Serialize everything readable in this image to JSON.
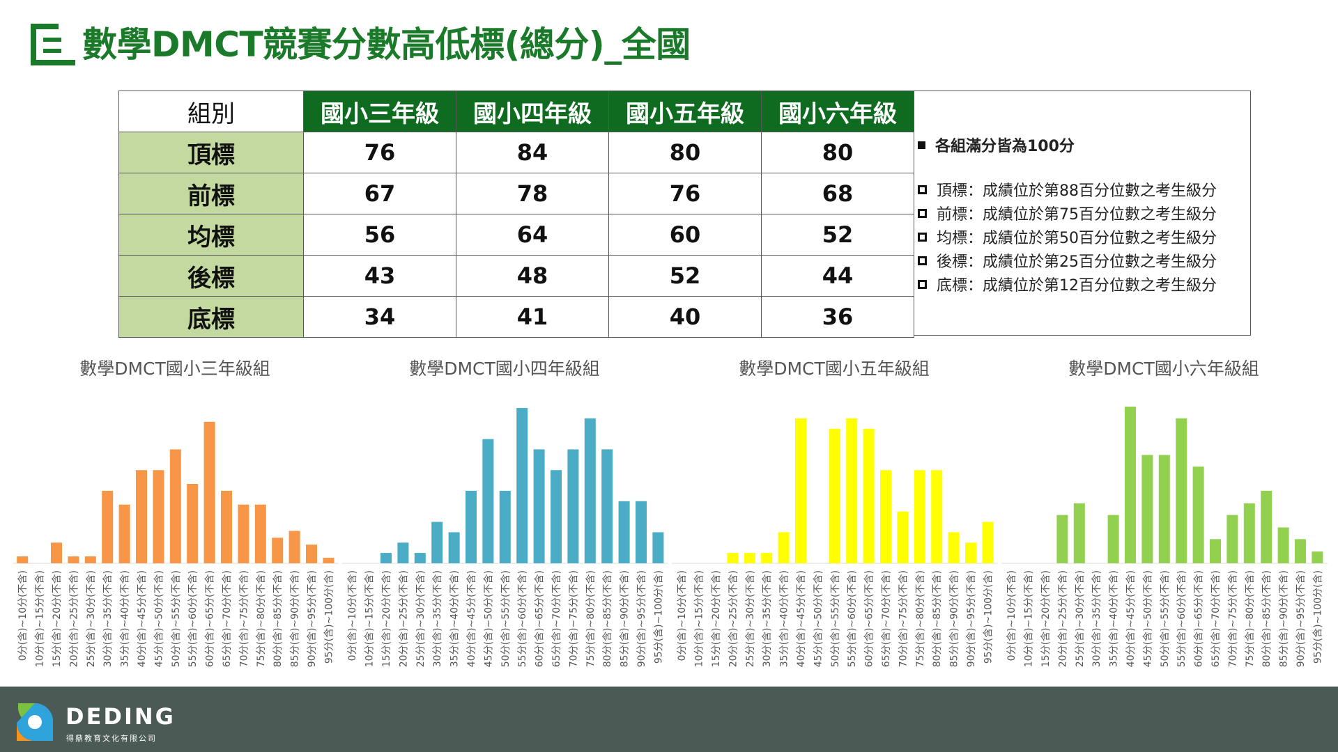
{
  "title": "數學DMCT競賽分數高低標(總分)_全國",
  "table": {
    "corner": "組別",
    "grades": [
      "國小三年級",
      "國小四年級",
      "國小五年級",
      "國小六年級"
    ],
    "rows": [
      {
        "label": "頂標",
        "values": [
          "76",
          "84",
          "80",
          "80"
        ]
      },
      {
        "label": "前標",
        "values": [
          "67",
          "78",
          "76",
          "68"
        ]
      },
      {
        "label": "均標",
        "values": [
          "56",
          "64",
          "60",
          "52"
        ]
      },
      {
        "label": "後標",
        "values": [
          "43",
          "48",
          "52",
          "44"
        ]
      },
      {
        "label": "底標",
        "values": [
          "34",
          "41",
          "40",
          "36"
        ]
      }
    ]
  },
  "notes": {
    "main": "各組滿分皆為100分",
    "items": [
      "頂標：成績位於第88百分位數之考生級分",
      "前標：成績位於第75百分位數之考生級分",
      "均標：成績位於第50百分位數之考生級分",
      "後標：成績位於第25百分位數之考生級分",
      "底標：成績位於第12百分位數之考生級分"
    ]
  },
  "chart_data": [
    {
      "type": "bar",
      "title": "數學DMCT國小三年級組",
      "color": "#f79646",
      "categories": [
        "0分(含)~10分(不含)",
        "10分(含)~15分(不含)",
        "15分(含)~20分(不含)",
        "20分(含)~25分(不含)",
        "25分(含)~30分(不含)",
        "30分(含)~35分(不含)",
        "35分(含)~40分(不含)",
        "40分(含)~45分(不含)",
        "45分(含)~50分(不含)",
        "50分(含)~55分(不含)",
        "55分(含)~60分(不含)",
        "60分(含)~65分(不含)",
        "65分(含)~70分(不含)",
        "70分(含)~75分(不含)",
        "75分(含)~80分(不含)",
        "80分(含)~85分(不含)",
        "85分(含)~90分(不含)",
        "90分(含)~95分(不含)",
        "95分(含)~100分(含)"
      ],
      "values": [
        1,
        0,
        3,
        1,
        1,
        10.5,
        8.5,
        13.5,
        13.5,
        16.5,
        11.5,
        20.5,
        10.5,
        8.5,
        8.5,
        3.7,
        4.7,
        2.7,
        0.8
      ]
    },
    {
      "type": "bar",
      "title": "數學DMCT國小四年級組",
      "color": "#4bacc6",
      "categories": [
        "0分(含)~10分(不含)",
        "10分(含)~15分(不含)",
        "15分(含)~20分(不含)",
        "20分(含)~25分(不含)",
        "25分(含)~30分(不含)",
        "30分(含)~35分(不含)",
        "35分(含)~40分(不含)",
        "40分(含)~45分(不含)",
        "45分(含)~50分(不含)",
        "50分(含)~55分(不含)",
        "55分(含)~60分(不含)",
        "60分(含)~65分(不含)",
        "65分(含)~70分(不含)",
        "70分(含)~75分(不含)",
        "75分(含)~80分(不含)",
        "80分(含)~85分(不含)",
        "85分(含)~90分(不含)",
        "90分(含)~95分(不含)",
        "95分(含)~100分(含)"
      ],
      "values": [
        0,
        0,
        1.5,
        3,
        1.5,
        6,
        4.5,
        10.5,
        18,
        10.5,
        22.5,
        16.5,
        13.5,
        16.5,
        21,
        16.5,
        9,
        9,
        4.5
      ]
    },
    {
      "type": "bar",
      "title": "數學DMCT國小五年級組",
      "color": "#ffff00",
      "categories": [
        "0分(含)~10分(不含)",
        "10分(含)~15分(不含)",
        "15分(含)~20分(不含)",
        "20分(含)~25分(不含)",
        "25分(含)~30分(不含)",
        "30分(含)~35分(不含)",
        "35分(含)~40分(不含)",
        "40分(含)~45分(不含)",
        "45分(含)~50分(不含)",
        "50分(含)~55分(不含)",
        "55分(含)~60分(不含)",
        "60分(含)~65分(不含)",
        "65分(含)~70分(不含)",
        "70分(含)~75分(不含)",
        "75分(含)~80分(不含)",
        "80分(含)~85分(不含)",
        "85分(含)~90分(不含)",
        "90分(含)~95分(不含)",
        "95分(含)~100分(含)"
      ],
      "values": [
        0,
        0,
        0,
        1.5,
        1.5,
        1.5,
        4.5,
        21,
        0,
        19.5,
        21,
        19.5,
        13.5,
        7.5,
        13.5,
        13.5,
        4.5,
        3,
        6
      ]
    },
    {
      "type": "bar",
      "title": "數學DMCT國小六年級組",
      "color": "#92d050",
      "categories": [
        "0分(含)~10分(不含)",
        "10分(含)~15分(不含)",
        "15分(含)~20分(不含)",
        "20分(含)~25分(不含)",
        "25分(含)~30分(不含)",
        "30分(含)~35分(不含)",
        "35分(含)~40分(不含)",
        "40分(含)~45分(不含)",
        "45分(含)~50分(不含)",
        "50分(含)~55分(不含)",
        "55分(含)~60分(不含)",
        "60分(含)~65分(不含)",
        "65分(含)~70分(不含)",
        "70分(含)~75分(不含)",
        "75分(含)~80分(不含)",
        "80分(含)~85分(不含)",
        "85分(含)~90分(不含)",
        "90分(含)~95分(不含)",
        "95分(含)~100分(含)"
      ],
      "values": [
        0,
        0,
        0,
        7,
        8.7,
        0,
        7,
        22.7,
        15.7,
        15.7,
        21,
        14,
        3.5,
        7,
        8.7,
        10.5,
        5.2,
        3.5,
        1.7
      ]
    }
  ],
  "footer": {
    "logo_text": "DEDING",
    "logo_sub": "得鼎教育文化有限公司"
  },
  "colors": {
    "title_green": "#1a7a2a",
    "header_green": "#0e6b1f",
    "row_head_green": "#c4d9a0",
    "footer_bg": "#4b5a55"
  }
}
